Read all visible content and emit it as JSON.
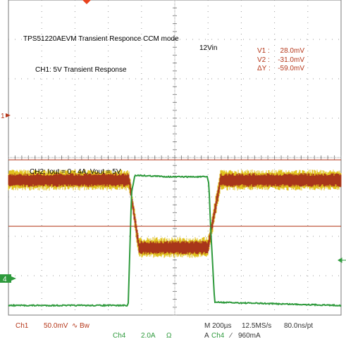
{
  "chart_data": {
    "type": "line",
    "title": "TPS51220AEVM Transient Responce CCM mode",
    "annotations": {
      "ch1_label": "CH1: 5V Transient Response",
      "input_voltage": "12Vin",
      "ch2_label": "CH2: Iout = 0 - 4A, Vout = 5V"
    },
    "cursors": {
      "v1_label": "V1 :",
      "v1_value": "28.0mV",
      "v2_label": "V2 :",
      "v2_value": "-31.0mV",
      "dv_label": "ΔY :",
      "dv_value": "-59.0mV",
      "v1_mv": 28.0,
      "v2_mv": -31.0
    },
    "x_unit": "µs",
    "xlim": [
      -1000,
      1000
    ],
    "series": [
      {
        "name": "Ch1",
        "color": "#a8361a",
        "noise_color": "#e0c21e",
        "unit": "mV",
        "volts_per_div": 50.0,
        "ylim": [
          -110,
          170
        ],
        "x": [
          -1000,
          -275,
          -215,
          -210,
          200,
          275,
          1000
        ],
        "y": [
          10,
          10,
          -50,
          -50,
          -50,
          10,
          10
        ]
      },
      {
        "name": "Ch4",
        "color": "#2e9a3c",
        "unit": "A",
        "amps_per_div": 2.0,
        "ylim": [
          -0.3,
          9.5
        ],
        "x": [
          -1000,
          -280,
          -260,
          -240,
          -20,
          195,
          205,
          215,
          240,
          1000
        ],
        "y": [
          0,
          0,
          3.5,
          4.05,
          4.0,
          4.0,
          3.8,
          2.5,
          0.1,
          0
        ]
      }
    ],
    "markers": {
      "ch1_ref": "1",
      "ch4_ref": "4"
    },
    "status": {
      "ch1": "Ch1",
      "ch1_scale": "50.0mV",
      "ch1_coupling_symbol": "∿",
      "ch1_bw": "Bw",
      "ch4": "Ch4",
      "ch4_scale": "2.0A",
      "ch4_impedance": "Ω",
      "timebase": "M 200µs",
      "sample_rate": "12.5MS/s",
      "resolution": "80.0ns/pt",
      "trigger_mode": "A",
      "trigger_source": "Ch4",
      "trigger_slope": "∕",
      "trigger_level": "960mA"
    }
  }
}
